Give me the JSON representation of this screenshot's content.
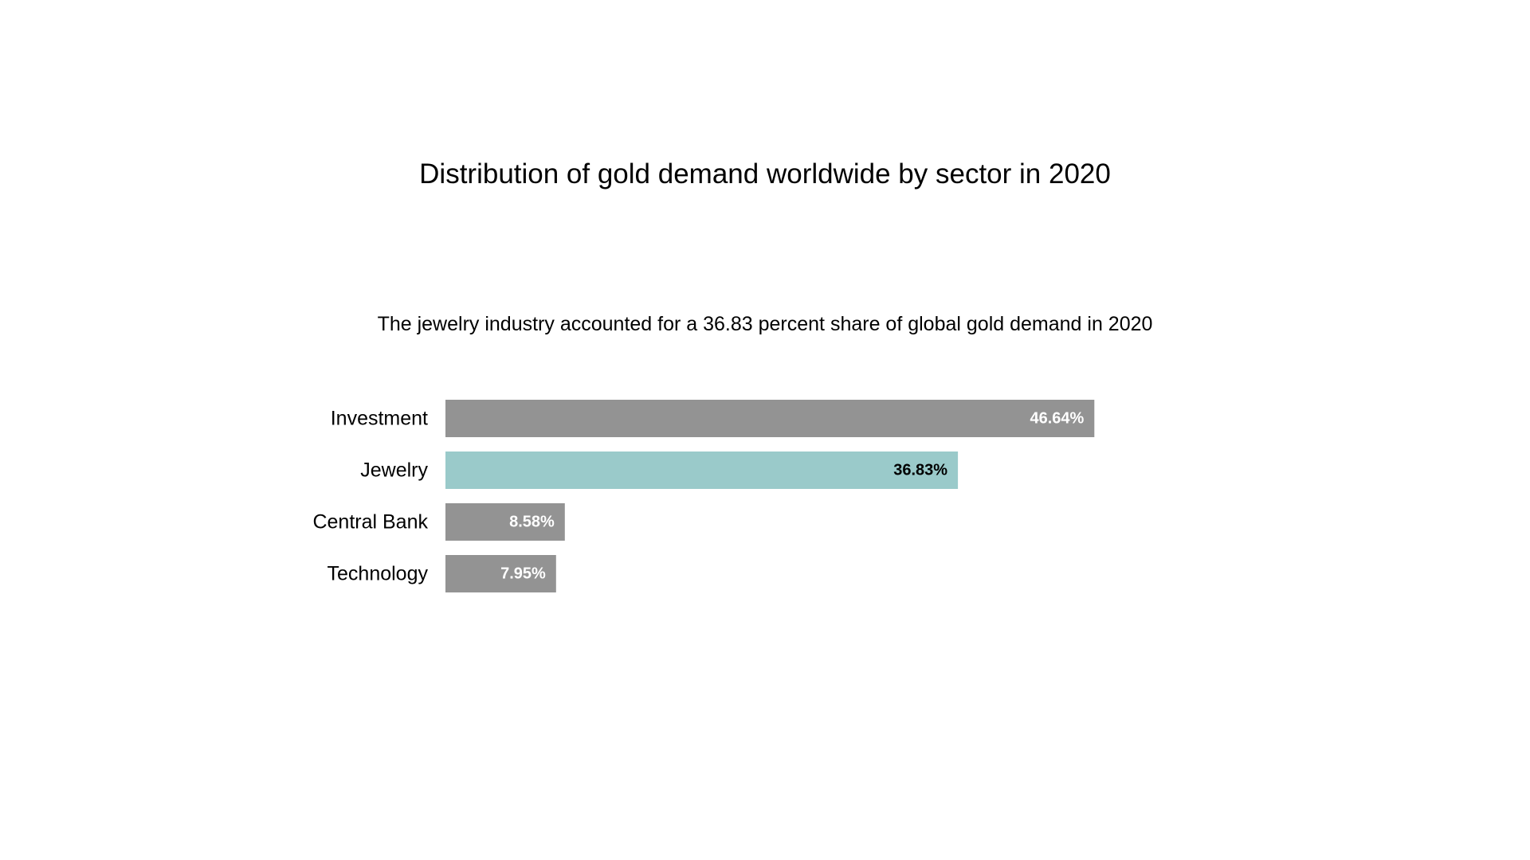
{
  "chart_data": {
    "type": "bar",
    "orientation": "horizontal",
    "title": "Distribution of gold demand worldwide by sector in 2020",
    "subtitle": "The jewelry industry accounted for a 36.83 percent share of global gold demand in 2020",
    "categories": [
      "Investment",
      "Jewelry",
      "Central Bank",
      "Technology"
    ],
    "values": [
      46.64,
      36.83,
      8.58,
      7.95
    ],
    "value_labels": [
      "46.64%",
      "36.83%",
      "8.58%",
      "7.95%"
    ],
    "unit": "%",
    "highlight_category": "Jewelry",
    "colors": {
      "bar": "#939393",
      "highlight": "#9ACACA",
      "label_on_bar": "#ffffff",
      "label_on_highlight": "#000000"
    },
    "grid": false,
    "legend": "none"
  }
}
